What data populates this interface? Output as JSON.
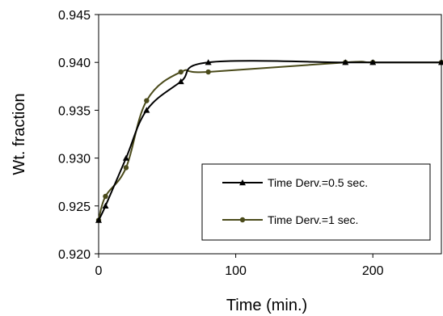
{
  "chart_data": {
    "type": "line",
    "xlabel": "Time (min.)",
    "ylabel": "Wt. fraction",
    "xlim": [
      0,
      250
    ],
    "ylim": [
      0.92,
      0.945
    ],
    "x_ticks": [
      "0",
      "100",
      "200"
    ],
    "x_tick_values": [
      0,
      100,
      200
    ],
    "y_ticks": [
      "0.920",
      "0.925",
      "0.930",
      "0.935",
      "0.940",
      "0.945"
    ],
    "y_tick_values": [
      0.92,
      0.925,
      0.93,
      0.935,
      0.94,
      0.945
    ],
    "grid": false,
    "legend_position": "right",
    "series": [
      {
        "name": "Time Derv.=0.5 sec.",
        "color": "#000000",
        "marker": "triangle",
        "x": [
          0,
          5,
          20,
          35,
          60,
          80,
          180,
          200,
          250
        ],
        "y": [
          0.9235,
          0.925,
          0.93,
          0.935,
          0.938,
          0.94,
          0.94,
          0.94,
          0.94
        ]
      },
      {
        "name": "Time Derv.=1 sec.",
        "color": "#4a4a1a",
        "marker": "circle",
        "x": [
          0,
          5,
          20,
          35,
          60,
          80,
          180,
          200,
          250
        ],
        "y": [
          0.9235,
          0.926,
          0.929,
          0.936,
          0.939,
          0.939,
          0.94,
          0.94,
          0.94
        ]
      }
    ]
  }
}
